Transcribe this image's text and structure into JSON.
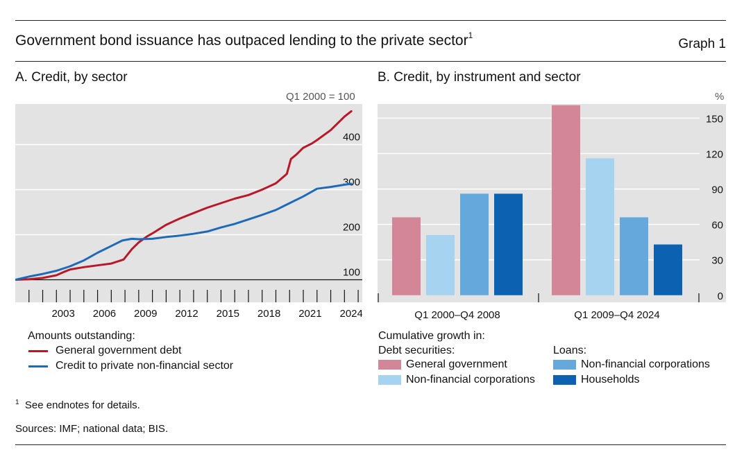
{
  "header": {
    "title": "Government bond issuance has outpaced lending to the private sector",
    "footnote_ref": "1",
    "graph_label": "Graph 1"
  },
  "chart_data": [
    {
      "type": "line",
      "title": "A. Credit, by sector",
      "unit_label": "Q1 2000 = 100",
      "ylim": [
        50,
        490
      ],
      "yticks": [
        100,
        200,
        300,
        400
      ],
      "ytick_labels": [
        "100",
        "200",
        "300",
        "400"
      ],
      "x_tick_labels": [
        "2003",
        "2006",
        "2009",
        "2012",
        "2015",
        "2018",
        "2021",
        "2024"
      ],
      "x_tick_values": [
        2003,
        2006,
        2009,
        2012,
        2015,
        2018,
        2021,
        2024
      ],
      "xlim": [
        2000.0,
        2025.3
      ],
      "legend_heading": "Amounts outstanding:",
      "series": [
        {
          "name": "General government debt",
          "color": "#b81827",
          "x": [
            2000.0,
            2001.0,
            2002.0,
            2003.0,
            2003.6,
            2004.0,
            2005.0,
            2006.0,
            2007.0,
            2007.9,
            2008.5,
            2009.0,
            2009.6,
            2010.0,
            2011.0,
            2012.0,
            2013.0,
            2014.0,
            2015.0,
            2016.0,
            2017.0,
            2018.0,
            2019.0,
            2019.8,
            2020.1,
            2020.5,
            2021.0,
            2021.6,
            2022.0,
            2023.0,
            2024.0,
            2024.5
          ],
          "values": [
            100,
            101,
            104,
            110,
            118,
            123,
            128,
            132,
            136,
            145,
            168,
            183,
            196,
            203,
            222,
            236,
            248,
            260,
            270,
            280,
            288,
            300,
            314,
            335,
            368,
            378,
            393,
            402,
            410,
            432,
            462,
            474
          ]
        },
        {
          "name": "Credit to private non-financial sector",
          "color": "#1f6ab6",
          "x": [
            2000.0,
            2001.0,
            2002.0,
            2003.0,
            2004.0,
            2005.0,
            2006.0,
            2007.0,
            2007.8,
            2008.5,
            2009.0,
            2010.0,
            2011.0,
            2012.0,
            2013.0,
            2014.0,
            2015.0,
            2016.0,
            2017.0,
            2018.0,
            2019.0,
            2020.0,
            2021.0,
            2022.0,
            2023.0,
            2024.0,
            2024.5
          ],
          "values": [
            100,
            107,
            113,
            120,
            130,
            143,
            160,
            175,
            187,
            191,
            190,
            191,
            195,
            198,
            202,
            207,
            216,
            224,
            234,
            244,
            255,
            270,
            285,
            302,
            306,
            311,
            313
          ]
        }
      ]
    },
    {
      "type": "bar",
      "title": "B. Credit, by instrument and sector",
      "unit_label": "%",
      "ylim": [
        -6,
        162
      ],
      "yticks": [
        0,
        30,
        60,
        90,
        120,
        150
      ],
      "ytick_labels": [
        "0",
        "30",
        "60",
        "90",
        "120",
        "150"
      ],
      "categories": [
        "Q1 2000–Q4 2008",
        "Q1 2009–Q4 2024"
      ],
      "legend_heading": "Cumulative growth in:",
      "legend_group_debt": "Debt securities:",
      "legend_group_loans": "Loans:",
      "series": [
        {
          "name": "General government",
          "color": "#d48699",
          "values": [
            66,
            161
          ]
        },
        {
          "name": "Non-financial corporations",
          "color": "#a6d3ef",
          "values": [
            51,
            116
          ]
        },
        {
          "name": "Non-financial corporations",
          "color": "#64a8dc",
          "values": [
            86,
            66
          ]
        },
        {
          "name": "Households",
          "color": "#0c62b0",
          "values": [
            86,
            43
          ]
        }
      ]
    }
  ],
  "footer": {
    "footnote_mark": "1",
    "footnote_text": "See endnotes for details.",
    "sources": "Sources: IMF; national data; BIS."
  }
}
